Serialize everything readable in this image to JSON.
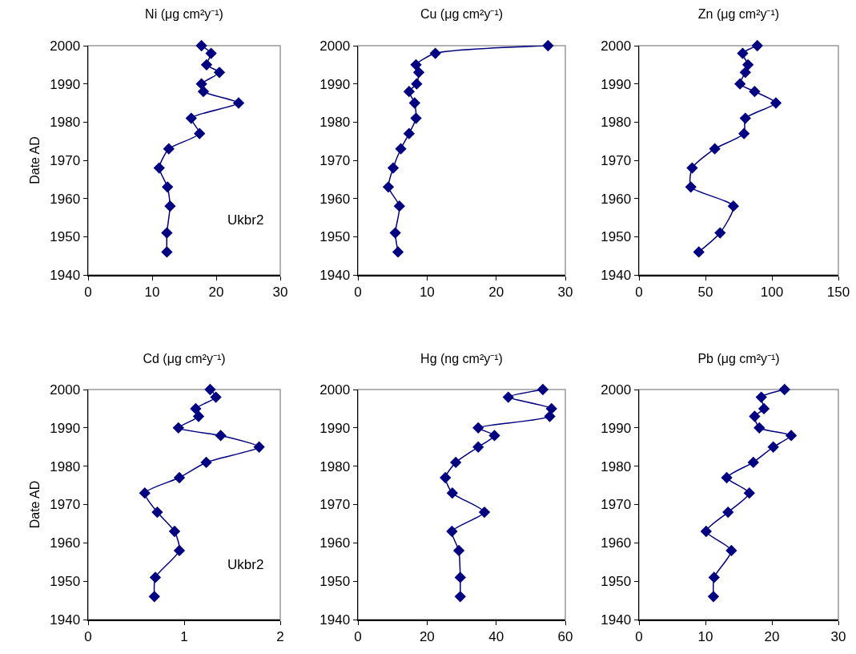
{
  "chart_data": [
    {
      "type": "line",
      "title": "Ni (μg cm²y⁻¹)",
      "ylabel": "Date AD",
      "annotations": [
        "Ukbr2"
      ],
      "xlim": [
        0,
        30
      ],
      "xticks": [
        0,
        10,
        20,
        30
      ],
      "ylim": [
        1940,
        2000
      ],
      "yticks": [
        1940,
        1950,
        1960,
        1970,
        1980,
        1990,
        2000
      ],
      "grid": false,
      "marker": "diamond",
      "line_style": "solid",
      "series": [
        {
          "color": "#000080",
          "x": [
            17.7,
            19.2,
            18.5,
            20.5,
            17.7,
            18,
            23.5,
            16.1,
            17.4,
            12.6,
            11.1,
            12.4,
            12.8,
            12.3,
            12.3
          ],
          "values": [
            2000,
            1998,
            1995,
            1993,
            1990,
            1988,
            1985,
            1981,
            1977,
            1973,
            1968,
            1963,
            1958,
            1951,
            1946
          ]
        }
      ]
    },
    {
      "type": "line",
      "title": "Cu (μg cm²y⁻¹)",
      "xlim": [
        0,
        30
      ],
      "xticks": [
        0,
        10,
        20,
        30
      ],
      "ylim": [
        1940,
        2000
      ],
      "yticks": [
        1940,
        1950,
        1960,
        1970,
        1980,
        1990,
        2000
      ],
      "grid": false,
      "marker": "diamond",
      "line_style": "solid",
      "series": [
        {
          "color": "#000080",
          "x": [
            27.5,
            11.2,
            8.4,
            8.8,
            8.5,
            7.4,
            8.2,
            8.4,
            7.4,
            6.2,
            5.1,
            4.4,
            6.0,
            5.4,
            5.8
          ],
          "values": [
            2000,
            1998,
            1995,
            1993,
            1990,
            1988,
            1985,
            1981,
            1977,
            1973,
            1968,
            1963,
            1958,
            1951,
            1946
          ]
        }
      ]
    },
    {
      "type": "line",
      "title": "Zn (μg cm²y⁻¹)",
      "xlim": [
        0,
        150
      ],
      "xticks": [
        0,
        50,
        100,
        150
      ],
      "ylim": [
        1940,
        2000
      ],
      "yticks": [
        1940,
        1950,
        1960,
        1970,
        1980,
        1990,
        2000
      ],
      "grid": false,
      "marker": "diamond",
      "line_style": "solid",
      "series": [
        {
          "color": "#000080",
          "x": [
            89,
            78,
            82,
            80,
            76,
            87,
            103,
            80,
            79,
            57,
            40,
            39,
            71,
            61,
            45
          ],
          "values": [
            2000,
            1998,
            1995,
            1993,
            1990,
            1988,
            1985,
            1981,
            1977,
            1973,
            1968,
            1963,
            1958,
            1951,
            1946
          ]
        }
      ]
    },
    {
      "type": "line",
      "title": "Cd (μg cm²y⁻¹)",
      "ylabel": "Date AD",
      "annotations": [
        "Ukbr2"
      ],
      "xlim": [
        0,
        2
      ],
      "xticks": [
        0,
        1,
        2
      ],
      "ylim": [
        1940,
        2000
      ],
      "yticks": [
        1940,
        1950,
        1960,
        1970,
        1980,
        1990,
        2000
      ],
      "grid": false,
      "marker": "diamond",
      "line_style": "solid",
      "series": [
        {
          "color": "#000080",
          "x": [
            1.27,
            1.33,
            1.12,
            1.15,
            0.94,
            1.38,
            1.78,
            1.23,
            0.95,
            0.59,
            0.72,
            0.9,
            0.95,
            0.7,
            0.69
          ],
          "values": [
            2000,
            1998,
            1995,
            1993,
            1990,
            1988,
            1985,
            1981,
            1977,
            1973,
            1968,
            1963,
            1958,
            1951,
            1946
          ]
        }
      ]
    },
    {
      "type": "line",
      "title": "Hg (ng cm²y⁻¹)",
      "xlim": [
        0,
        60
      ],
      "xticks": [
        0,
        20,
        40,
        60
      ],
      "ylim": [
        1940,
        2000
      ],
      "yticks": [
        1940,
        1950,
        1960,
        1970,
        1980,
        1990,
        2000
      ],
      "grid": false,
      "marker": "diamond",
      "line_style": "solid",
      "series": [
        {
          "color": "#000080",
          "x": [
            53.5,
            43.5,
            56,
            55.5,
            34.8,
            39.5,
            34.8,
            28.3,
            25.3,
            27.3,
            36.6,
            27.2,
            29.2,
            29.6,
            29.6
          ],
          "values": [
            2000,
            1998,
            1995,
            1993,
            1990,
            1988,
            1985,
            1981,
            1977,
            1973,
            1968,
            1963,
            1958,
            1951,
            1946
          ]
        }
      ]
    },
    {
      "type": "line",
      "title": "Pb (μg cm²y⁻¹)",
      "xlim": [
        0,
        30
      ],
      "xticks": [
        0,
        10,
        20,
        30
      ],
      "ylim": [
        1940,
        2000
      ],
      "yticks": [
        1940,
        1950,
        1960,
        1970,
        1980,
        1990,
        2000
      ],
      "grid": false,
      "marker": "diamond",
      "line_style": "solid",
      "series": [
        {
          "color": "#000080",
          "x": [
            21.9,
            18.4,
            18.8,
            17.4,
            18.1,
            22.9,
            20.2,
            17.2,
            13.2,
            16.6,
            13.4,
            10.1,
            13.9,
            11.3,
            11.2
          ],
          "values": [
            2000,
            1998,
            1995,
            1993,
            1990,
            1988,
            1985,
            1981,
            1977,
            1973,
            1968,
            1963,
            1958,
            1951,
            1946
          ]
        }
      ]
    }
  ]
}
